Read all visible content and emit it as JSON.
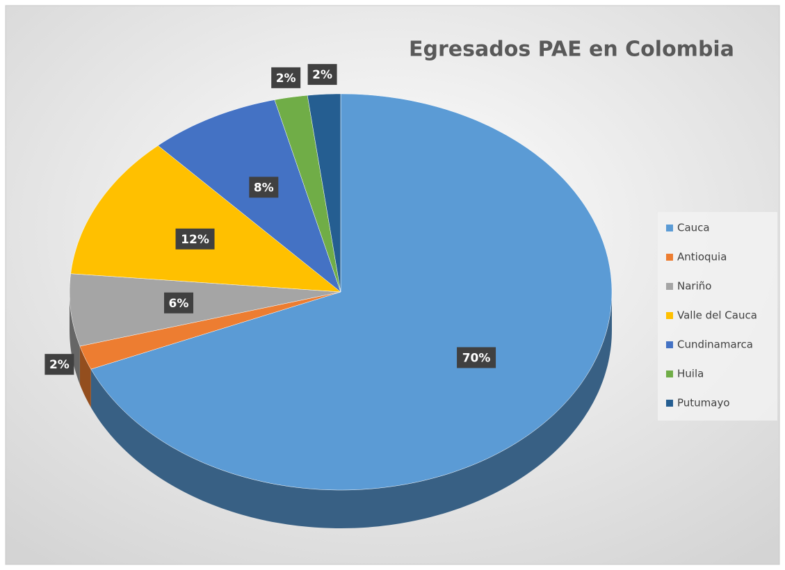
{
  "chart_data": {
    "type": "pie",
    "title": "Egresados PAE en Colombia",
    "categories": [
      "Cauca",
      "Antioquia",
      "Nariño",
      "Valle del Cauca",
      "Cundinamarca",
      "Huila",
      "Putumayo"
    ],
    "values": [
      70,
      2,
      6,
      12,
      8,
      2,
      2
    ],
    "value_labels": [
      "70%",
      "2%",
      "6%",
      "12%",
      "8%",
      "2%",
      "2%"
    ],
    "colors": [
      "#5b9bd5",
      "#ed7d31",
      "#a5a5a5",
      "#ffc000",
      "#4472c4",
      "#70ad47",
      "#255e91"
    ],
    "legend": "right"
  }
}
